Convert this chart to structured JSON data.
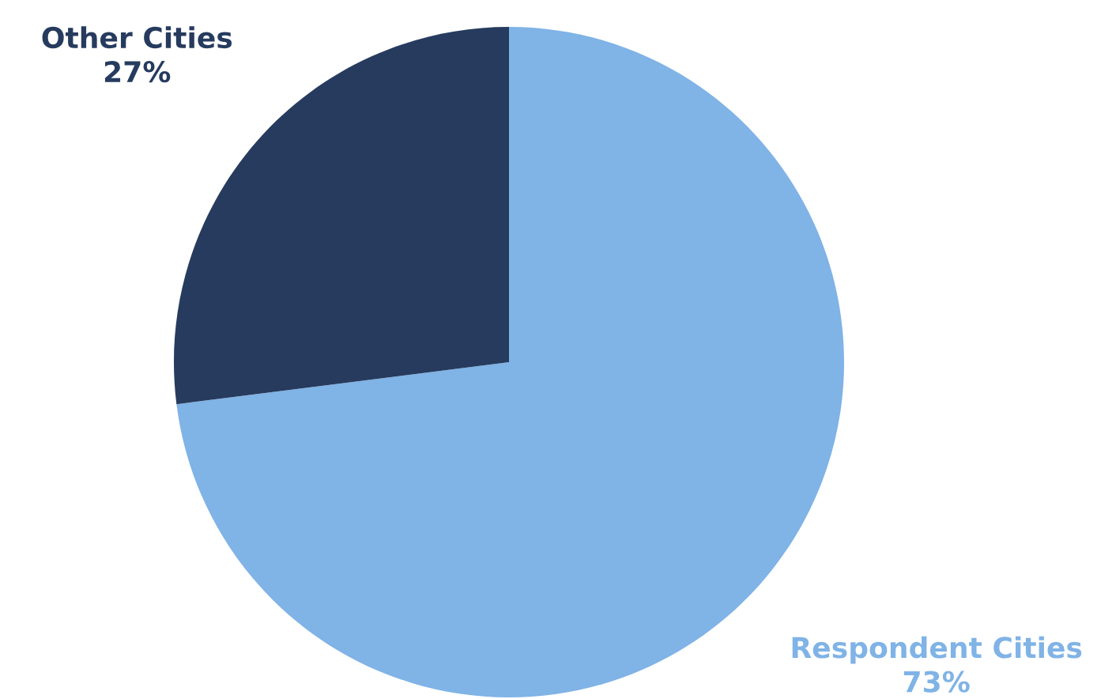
{
  "chart_data": {
    "type": "pie",
    "categories": [
      "Respondent Cities",
      "Other Cities"
    ],
    "values": [
      73,
      27
    ],
    "value_labels": [
      "73%",
      "27%"
    ],
    "colors": [
      "#80b3e6",
      "#263b5e"
    ]
  }
}
